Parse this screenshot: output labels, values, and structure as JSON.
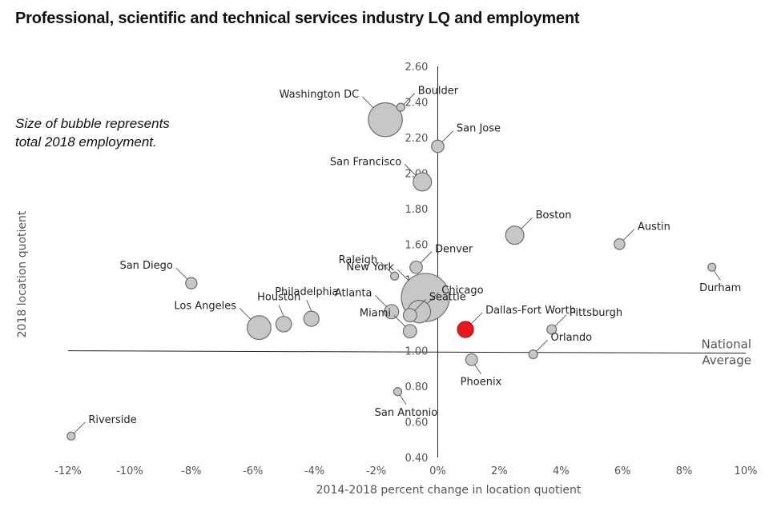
{
  "chart_data": {
    "type": "scatter",
    "title": "Professional, scientific and technical services industry LQ and employment",
    "note": "Size of bubble represents total 2018 employment.",
    "xlabel": "2014-2018 percent change in location quotient",
    "ylabel": "2018 location quotient",
    "xlim": [
      -12,
      10
    ],
    "ylim": [
      0.4,
      2.6
    ],
    "x_ticks": [
      -12,
      -10,
      -8,
      -6,
      -4,
      -2,
      0,
      2,
      4,
      6,
      8,
      10
    ],
    "x_tick_labels": [
      "-12%",
      "-10%",
      "-8%",
      "-6%",
      "-4%",
      "-2%",
      "0%",
      "2%",
      "4%",
      "6%",
      "8%",
      "10%"
    ],
    "y_ticks": [
      0.4,
      0.6,
      0.8,
      1.0,
      1.2,
      1.4,
      1.6,
      1.8,
      2.0,
      2.2,
      2.4,
      2.6
    ],
    "y_tick_labels": [
      "0.40",
      "0.60",
      "0.80",
      "1.00",
      "1.20",
      "1.40",
      "1.60",
      "1.80",
      "2.00",
      "2.20",
      "2.40",
      "2.60"
    ],
    "reference_line": {
      "y": 1.0,
      "label_line1": "National",
      "label_line2": "Average"
    },
    "highlight_color": "#e8171f",
    "bubble_color": "#c8c6c7",
    "points": [
      {
        "name": "Boulder",
        "x": -1.2,
        "y": 2.37,
        "size": 12,
        "label_side": "right"
      },
      {
        "name": "Washington DC",
        "x": -1.7,
        "y": 2.3,
        "size": 450,
        "label_side": "left"
      },
      {
        "name": "San Jose",
        "x": 0.0,
        "y": 2.15,
        "size": 60,
        "label_side": "right"
      },
      {
        "name": "San Francisco",
        "x": -0.5,
        "y": 1.95,
        "size": 130,
        "label_side": "left"
      },
      {
        "name": "Boston",
        "x": 2.5,
        "y": 1.65,
        "size": 130,
        "label_side": "right"
      },
      {
        "name": "Austin",
        "x": 5.9,
        "y": 1.6,
        "size": 45,
        "label_side": "right"
      },
      {
        "name": "Durham",
        "x": 8.9,
        "y": 1.47,
        "size": 12,
        "label_side": "below"
      },
      {
        "name": "Denver",
        "x": -0.7,
        "y": 1.47,
        "size": 60,
        "label_side": "right"
      },
      {
        "name": "Raleigh",
        "x": -1.4,
        "y": 1.42,
        "size": 25,
        "label_side": "left"
      },
      {
        "name": "Philadelphia",
        "x": -4.1,
        "y": 1.18,
        "size": 90,
        "label_side": "above"
      },
      {
        "name": "San Diego",
        "x": -8.0,
        "y": 1.38,
        "size": 50,
        "label_side": "left"
      },
      {
        "name": "New York",
        "x": -0.4,
        "y": 1.3,
        "size": 900,
        "label_side": "left"
      },
      {
        "name": "Chicago",
        "x": -0.6,
        "y": 1.22,
        "size": 200,
        "label_side": "right"
      },
      {
        "name": "Seattle",
        "x": -0.9,
        "y": 1.2,
        "size": 70,
        "label_side": "right"
      },
      {
        "name": "Houston",
        "x": -5.0,
        "y": 1.15,
        "size": 95,
        "label_side": "above"
      },
      {
        "name": "Los Angeles",
        "x": -5.8,
        "y": 1.13,
        "size": 220,
        "label_side": "left"
      },
      {
        "name": "Atlanta",
        "x": -1.5,
        "y": 1.22,
        "size": 80,
        "label_side": "left"
      },
      {
        "name": "Dallas-Fort Worth",
        "x": 0.9,
        "y": 1.12,
        "size": 100,
        "label_side": "right",
        "highlight": true
      },
      {
        "name": "Pittsburgh",
        "x": 3.7,
        "y": 1.12,
        "size": 35,
        "label_side": "right"
      },
      {
        "name": "Miami",
        "x": -0.9,
        "y": 1.11,
        "size": 70,
        "label_side": "left"
      },
      {
        "name": "Orlando",
        "x": 3.1,
        "y": 0.98,
        "size": 30,
        "label_side": "right"
      },
      {
        "name": "Phoenix",
        "x": 1.1,
        "y": 0.95,
        "size": 55,
        "label_side": "below"
      },
      {
        "name": "San Antonio",
        "x": -1.3,
        "y": 0.77,
        "size": 25,
        "label_side": "below"
      },
      {
        "name": "Riverside",
        "x": -11.9,
        "y": 0.52,
        "size": 20,
        "label_side": "right"
      }
    ]
  }
}
